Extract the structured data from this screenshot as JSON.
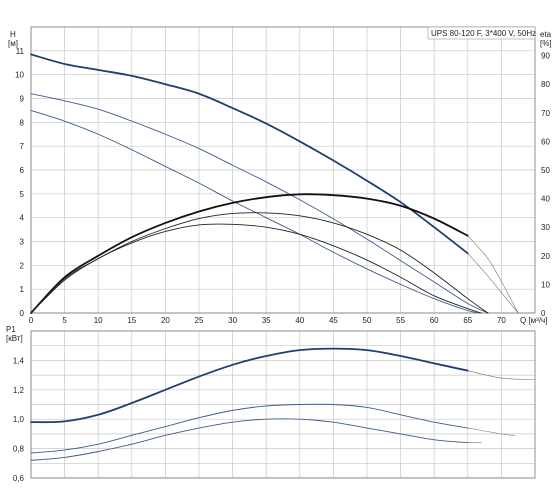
{
  "title": "UPS 80-120 F, 3*400 V, 50Hz",
  "chart_data": [
    {
      "type": "line",
      "title": "UPS 80-120 F, 3*400 V, 50Hz",
      "xlabel": "Q [м³/ч]",
      "ylabel": "H\n[м]",
      "y2label": "eta\n[%]",
      "xlim": [
        0,
        75
      ],
      "ylim": [
        0,
        12
      ],
      "y2lim": [
        0,
        100
      ],
      "x_ticks": [
        0,
        5,
        10,
        15,
        20,
        25,
        30,
        35,
        40,
        45,
        50,
        55,
        60,
        65,
        70
      ],
      "y_ticks": [
        0,
        1,
        2,
        3,
        4,
        5,
        6,
        7,
        8,
        9,
        10,
        11
      ],
      "y2_ticks": [
        0,
        10,
        20,
        30,
        40,
        50,
        60,
        70,
        80,
        90
      ],
      "grid": true,
      "series": [
        {
          "role": "head-speed-3",
          "color": "#1f3f6e",
          "axis": "left",
          "emphasis": "bold",
          "x": [
            0,
            5,
            10,
            15,
            20,
            25,
            30,
            35,
            40,
            45,
            50,
            55,
            60,
            65
          ],
          "y": [
            10.85,
            10.45,
            10.2,
            9.95,
            9.6,
            9.2,
            8.6,
            7.95,
            7.2,
            6.4,
            5.55,
            4.65,
            3.6,
            2.5
          ]
        },
        {
          "role": "head-speed-3-ext",
          "color": "#777777",
          "axis": "left",
          "emphasis": "thin",
          "x": [
            65,
            68,
            70,
            72.5
          ],
          "y": [
            2.5,
            1.55,
            0.85,
            0
          ]
        },
        {
          "role": "head-speed-2",
          "color": "#3d5c8c",
          "axis": "left",
          "emphasis": "medium",
          "x": [
            0,
            5,
            10,
            15,
            20,
            25,
            30,
            35,
            40,
            45,
            50,
            55,
            60,
            65,
            68
          ],
          "y": [
            9.2,
            8.9,
            8.55,
            8.05,
            7.5,
            6.9,
            6.2,
            5.5,
            4.75,
            3.95,
            3.1,
            2.2,
            1.3,
            0.4,
            0
          ]
        },
        {
          "role": "head-speed-1",
          "color": "#3d5c8c",
          "axis": "left",
          "emphasis": "medium",
          "x": [
            0,
            5,
            10,
            15,
            20,
            25,
            30,
            35,
            40,
            45,
            50,
            55,
            60,
            65,
            67
          ],
          "y": [
            8.5,
            8.05,
            7.5,
            6.85,
            6.15,
            5.45,
            4.7,
            4.0,
            3.3,
            2.55,
            1.85,
            1.2,
            0.6,
            0.1,
            0
          ]
        },
        {
          "role": "eta-speed-3",
          "color": "#111111",
          "axis": "right",
          "emphasis": "bold",
          "x": [
            0,
            5,
            10,
            15,
            20,
            25,
            30,
            35,
            40,
            45,
            50,
            55,
            60,
            65
          ],
          "y": [
            0,
            12.5,
            20,
            26.5,
            31.5,
            35.5,
            38.5,
            40.5,
            41.5,
            41.2,
            40,
            37.5,
            33,
            27
          ]
        },
        {
          "role": "eta-speed-3-ext",
          "color": "#777777",
          "axis": "right",
          "emphasis": "thin",
          "x": [
            65,
            68,
            70,
            72.5
          ],
          "y": [
            27,
            19,
            11,
            0
          ]
        },
        {
          "role": "eta-speed-2",
          "color": "#222222",
          "axis": "right",
          "emphasis": "medium",
          "x": [
            0,
            5,
            10,
            15,
            20,
            25,
            30,
            35,
            40,
            45,
            50,
            55,
            60,
            65,
            68
          ],
          "y": [
            0,
            12,
            19,
            25,
            29.5,
            33,
            34.8,
            35,
            34,
            31.5,
            27.5,
            22,
            14,
            5,
            0
          ]
        },
        {
          "role": "eta-speed-1",
          "color": "#222222",
          "axis": "right",
          "emphasis": "medium",
          "x": [
            0,
            5,
            10,
            15,
            20,
            25,
            30,
            35,
            40,
            45,
            50,
            55,
            60,
            65,
            67
          ],
          "y": [
            0,
            11.5,
            19,
            24.5,
            28.5,
            30.8,
            31,
            30,
            27.5,
            23.5,
            18.5,
            12.5,
            6,
            1.5,
            0
          ]
        }
      ]
    },
    {
      "type": "line",
      "ylabel": "P1\n[кВт]",
      "xlim": [
        0,
        75
      ],
      "ylim": [
        0.6,
        1.6
      ],
      "y_ticks": [
        0.6,
        0.8,
        1.0,
        1.2,
        1.4
      ],
      "y_tick_labels": [
        "0,6",
        "0,8",
        "1,0",
        "1,2",
        "1,4"
      ],
      "grid": true,
      "series": [
        {
          "role": "p1-speed-3",
          "color": "#1f3f6e",
          "axis": "left",
          "emphasis": "bold",
          "x": [
            0,
            5,
            10,
            15,
            20,
            25,
            30,
            35,
            40,
            45,
            50,
            55,
            60,
            65
          ],
          "y": [
            0.98,
            0.985,
            1.03,
            1.11,
            1.2,
            1.29,
            1.37,
            1.43,
            1.47,
            1.48,
            1.47,
            1.43,
            1.38,
            1.33
          ]
        },
        {
          "role": "p1-speed-3-ext",
          "color": "#777777",
          "axis": "left",
          "emphasis": "thin",
          "x": [
            65,
            70,
            75
          ],
          "y": [
            1.33,
            1.28,
            1.27
          ]
        },
        {
          "role": "p1-speed-2",
          "color": "#3d5c8c",
          "axis": "left",
          "emphasis": "medium",
          "x": [
            0,
            5,
            10,
            15,
            20,
            25,
            30,
            35,
            40,
            45,
            50,
            55,
            60,
            65
          ],
          "y": [
            0.77,
            0.79,
            0.83,
            0.89,
            0.95,
            1.01,
            1.06,
            1.09,
            1.1,
            1.1,
            1.08,
            1.03,
            0.98,
            0.94
          ]
        },
        {
          "role": "p1-speed-2-ext",
          "color": "#777777",
          "axis": "left",
          "emphasis": "thin",
          "x": [
            65,
            70,
            72
          ],
          "y": [
            0.94,
            0.9,
            0.89
          ]
        },
        {
          "role": "p1-speed-1",
          "color": "#3d5c8c",
          "axis": "left",
          "emphasis": "medium",
          "x": [
            0,
            5,
            10,
            15,
            20,
            25,
            30,
            35,
            40,
            45,
            50,
            55,
            60,
            65
          ],
          "y": [
            0.72,
            0.74,
            0.78,
            0.83,
            0.89,
            0.94,
            0.98,
            1.0,
            1.0,
            0.98,
            0.94,
            0.9,
            0.86,
            0.84
          ]
        },
        {
          "role": "p1-speed-1-ext",
          "color": "#777777",
          "axis": "left",
          "emphasis": "thin",
          "x": [
            65,
            67
          ],
          "y": [
            0.84,
            0.84
          ]
        }
      ]
    }
  ]
}
